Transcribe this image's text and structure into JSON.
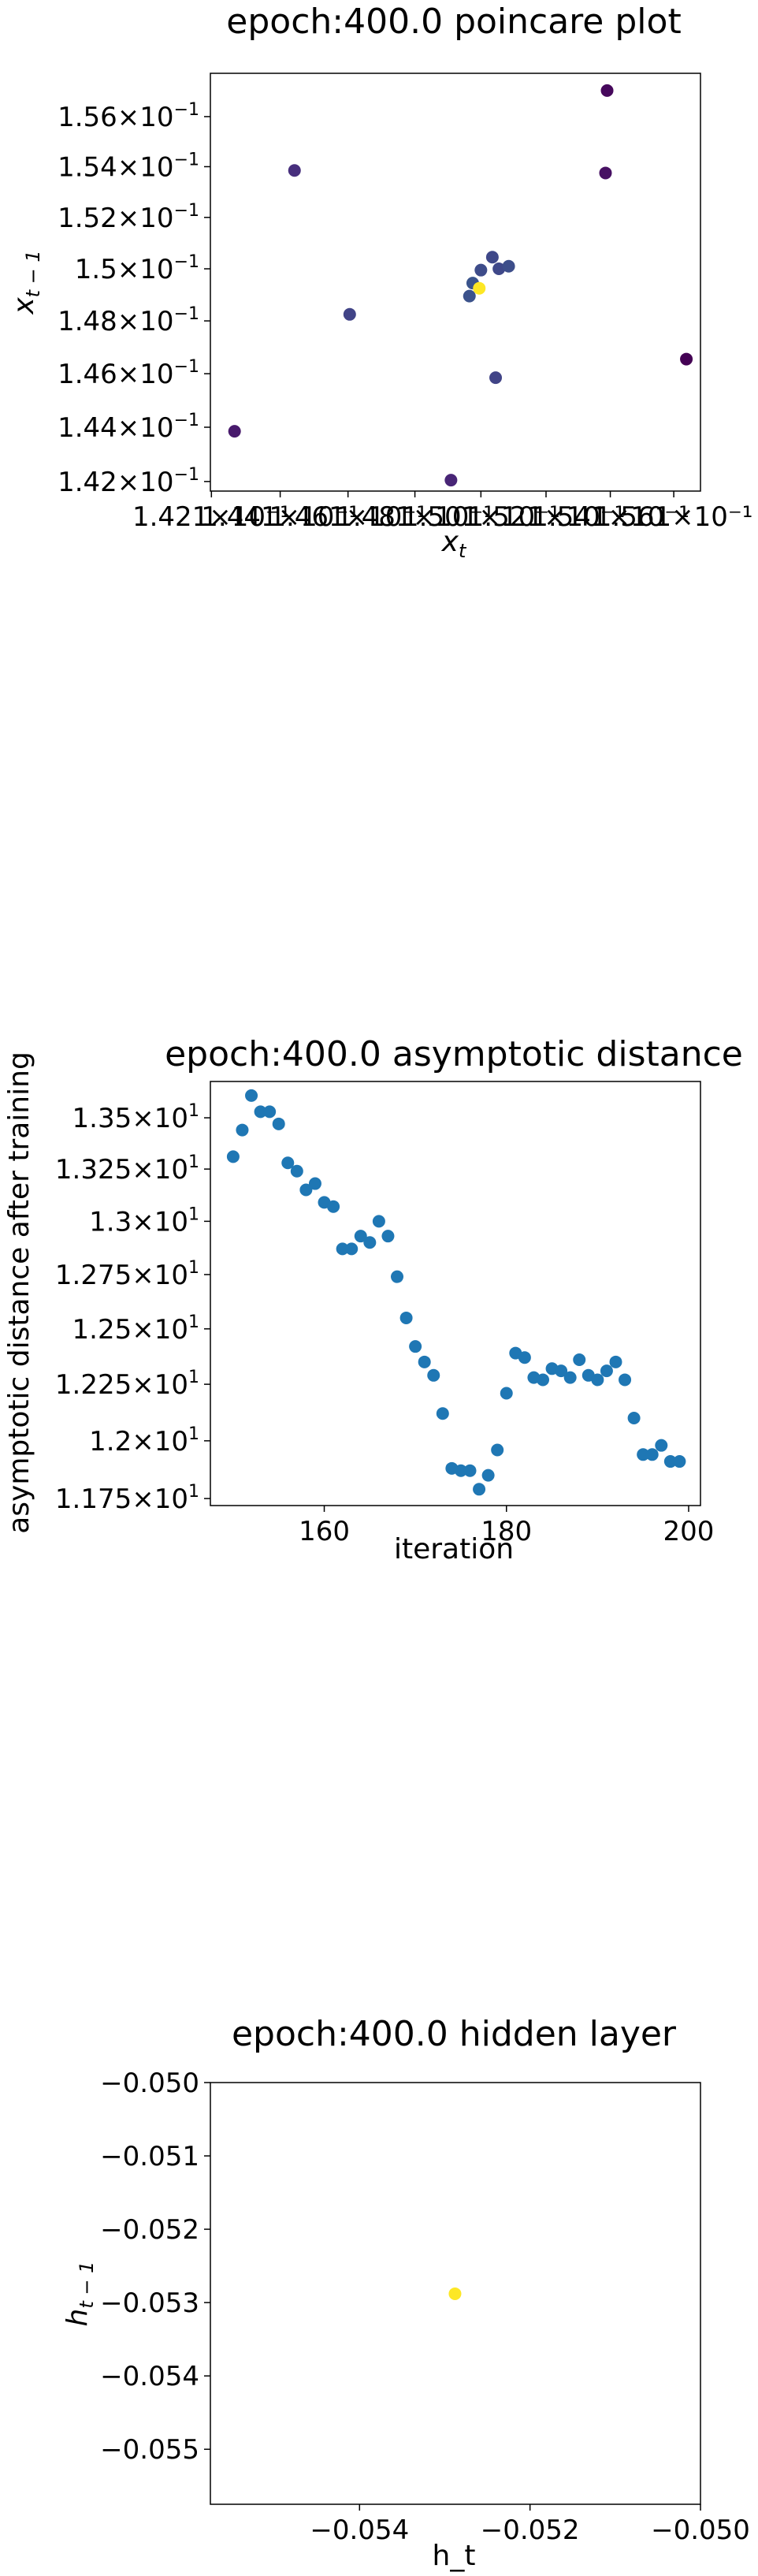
{
  "chart_data": [
    {
      "type": "scatter",
      "title": "epoch:400.0 poincare plot",
      "xlabel_main": "x",
      "xlabel_sub": "t",
      "ylabel_main": "x",
      "ylabel_sub": "t − 1",
      "xlim": [
        0.14207,
        0.15695
      ],
      "ylim": [
        0.14165,
        0.15775
      ],
      "log_scale": true,
      "grid": false,
      "colormap": "viridis",
      "x_tick_labels": [
        {
          "value": 0.1421,
          "text": "1.421×10⁻¹"
        },
        {
          "value": 0.1441,
          "text": "1.441×10⁻¹"
        },
        {
          "value": 0.1461,
          "text": "1.461×10⁻¹"
        },
        {
          "value": 0.1481,
          "text": "1.481×10⁻¹"
        },
        {
          "value": 0.1501,
          "text": "1.501×10⁻¹"
        },
        {
          "value": 0.1521,
          "text": "1.521×10⁻¹"
        },
        {
          "value": 0.1541,
          "text": "1.541×10⁻¹"
        },
        {
          "value": 0.1561,
          "text": "1.561×10⁻¹"
        }
      ],
      "y_ticks": [
        {
          "value": 0.142,
          "mantissa": "1.42"
        },
        {
          "value": 0.144,
          "mantissa": "1.44"
        },
        {
          "value": 0.146,
          "mantissa": "1.46"
        },
        {
          "value": 0.148,
          "mantissa": "1.48"
        },
        {
          "value": 0.15,
          "mantissa": "1.5"
        },
        {
          "value": 0.152,
          "mantissa": "1.52"
        },
        {
          "value": 0.154,
          "mantissa": "1.54"
        },
        {
          "value": 0.156,
          "mantissa": "1.56"
        }
      ],
      "points": [
        {
          "x": 0.14277,
          "y": 0.14385,
          "color": "#481a6c"
        },
        {
          "x": 0.14452,
          "y": 0.15385,
          "color": "#472f7d"
        },
        {
          "x": 0.14615,
          "y": 0.14825,
          "color": "#414487"
        },
        {
          "x": 0.14919,
          "y": 0.14205,
          "color": "#482576"
        },
        {
          "x": 0.14975,
          "y": 0.14895,
          "color": "#3b528b"
        },
        {
          "x": 0.14985,
          "y": 0.14945,
          "color": "#3a548c"
        },
        {
          "x": 0.1501,
          "y": 0.14995,
          "color": "#3e4c8a"
        },
        {
          "x": 0.15045,
          "y": 0.15045,
          "color": "#3f4889"
        },
        {
          "x": 0.15055,
          "y": 0.14585,
          "color": "#414487"
        },
        {
          "x": 0.15065,
          "y": 0.15,
          "color": "#3f4889"
        },
        {
          "x": 0.15095,
          "y": 0.1501,
          "color": "#3d4e8a"
        },
        {
          "x": 0.15395,
          "y": 0.15375,
          "color": "#471063"
        },
        {
          "x": 0.154,
          "y": 0.15705,
          "color": "#46085c"
        },
        {
          "x": 0.1565,
          "y": 0.14655,
          "color": "#440154"
        },
        {
          "x": 0.15005,
          "y": 0.14925,
          "color": "#fde725"
        }
      ]
    },
    {
      "type": "scatter",
      "title": "epoch:400.0 asymptotic distance",
      "xlabel": "iteration",
      "ylabel": "asymptotic distance after training",
      "xlim": [
        147.5,
        201.3
      ],
      "ylim": [
        11.72,
        13.68
      ],
      "log_scale": true,
      "grid": false,
      "color": "#1f77b4",
      "x_ticks": [
        160,
        180,
        200
      ],
      "y_ticks": [
        {
          "value": 11.75,
          "mantissa": "1.175"
        },
        {
          "value": 12.0,
          "mantissa": "1.2"
        },
        {
          "value": 12.25,
          "mantissa": "1.225"
        },
        {
          "value": 12.5,
          "mantissa": "1.25"
        },
        {
          "value": 12.75,
          "mantissa": "1.275"
        },
        {
          "value": 13.0,
          "mantissa": "1.3"
        },
        {
          "value": 13.25,
          "mantissa": "1.325"
        },
        {
          "value": 13.5,
          "mantissa": "1.35"
        }
      ],
      "x": [
        150,
        151,
        152,
        153,
        154,
        155,
        156,
        157,
        158,
        159,
        160,
        161,
        162,
        163,
        164,
        165,
        166,
        167,
        168,
        169,
        170,
        171,
        172,
        173,
        174,
        175,
        176,
        177,
        178,
        179,
        180,
        181,
        182,
        183,
        184,
        185,
        186,
        187,
        188,
        189,
        190,
        191,
        192,
        193,
        194,
        195,
        196,
        197,
        198,
        199
      ],
      "y": [
        13.31,
        13.44,
        13.61,
        13.53,
        13.53,
        13.47,
        13.28,
        13.24,
        13.15,
        13.18,
        13.09,
        13.07,
        12.87,
        12.87,
        12.93,
        12.9,
        13.0,
        12.93,
        12.74,
        12.55,
        12.42,
        12.35,
        12.29,
        12.12,
        11.88,
        11.87,
        11.87,
        11.79,
        11.85,
        11.96,
        12.21,
        12.39,
        12.37,
        12.28,
        12.27,
        12.32,
        12.31,
        12.28,
        12.36,
        12.29,
        12.27,
        12.31,
        12.35,
        12.27,
        12.1,
        11.94,
        11.94,
        11.98,
        11.91,
        11.91
      ]
    },
    {
      "type": "scatter",
      "title": "epoch:400.0 hidden layer",
      "xlabel": "h_t",
      "ylabel_main": "h",
      "ylabel_sub": "t − 1",
      "xlim": [
        -0.05575,
        -0.05
      ],
      "ylim": [
        -0.05575,
        -0.05
      ],
      "grid": false,
      "x_ticks": [
        -0.054,
        -0.052,
        -0.05
      ],
      "y_ticks": [
        -0.05,
        -0.051,
        -0.052,
        -0.053,
        -0.054,
        -0.055
      ],
      "x_tick_labels": [
        "−0.054",
        "−0.052",
        "−0.050"
      ],
      "y_tick_labels": [
        "−0.050",
        "−0.051",
        "−0.052",
        "−0.053",
        "−0.054",
        "−0.055"
      ],
      "points": [
        {
          "x": -0.05288,
          "y": -0.05288,
          "color": "#fde725"
        }
      ]
    }
  ]
}
